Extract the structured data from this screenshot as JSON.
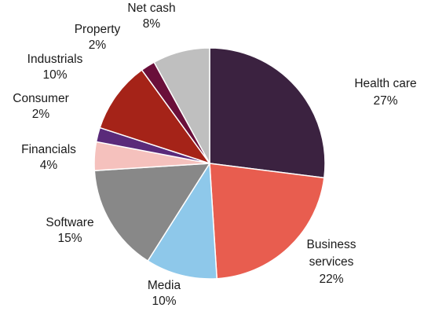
{
  "chart_data": {
    "type": "pie",
    "title": "",
    "start_angle_deg": 0,
    "direction": "clockwise",
    "slices": [
      {
        "name": "Health care",
        "name_lines": [
          "Health care"
        ],
        "pct_label": "27%",
        "value": 27,
        "color": "#3b2240"
      },
      {
        "name": "Business services",
        "name_lines": [
          "Business",
          "services"
        ],
        "pct_label": "22%",
        "value": 22,
        "color": "#e85d4f"
      },
      {
        "name": "Media",
        "name_lines": [
          "Media"
        ],
        "pct_label": "10%",
        "value": 10,
        "color": "#8ec8ea"
      },
      {
        "name": "Software",
        "name_lines": [
          "Software"
        ],
        "pct_label": "15%",
        "value": 15,
        "color": "#888888"
      },
      {
        "name": "Financials",
        "name_lines": [
          "Financials"
        ],
        "pct_label": "4%",
        "value": 4,
        "color": "#f5c1bd"
      },
      {
        "name": "Consumer",
        "name_lines": [
          "Consumer"
        ],
        "pct_label": "2%",
        "value": 2,
        "color": "#5a2a7a"
      },
      {
        "name": "Industrials",
        "name_lines": [
          "Industrials"
        ],
        "pct_label": "10%",
        "value": 10,
        "color": "#a52318"
      },
      {
        "name": "Property",
        "name_lines": [
          "Property"
        ],
        "pct_label": "2%",
        "value": 2,
        "color": "#6a0f3a"
      },
      {
        "name": "Net cash",
        "name_lines": [
          "Net cash"
        ],
        "pct_label": "8%",
        "value": 8,
        "color": "#bfbfbf"
      }
    ]
  }
}
